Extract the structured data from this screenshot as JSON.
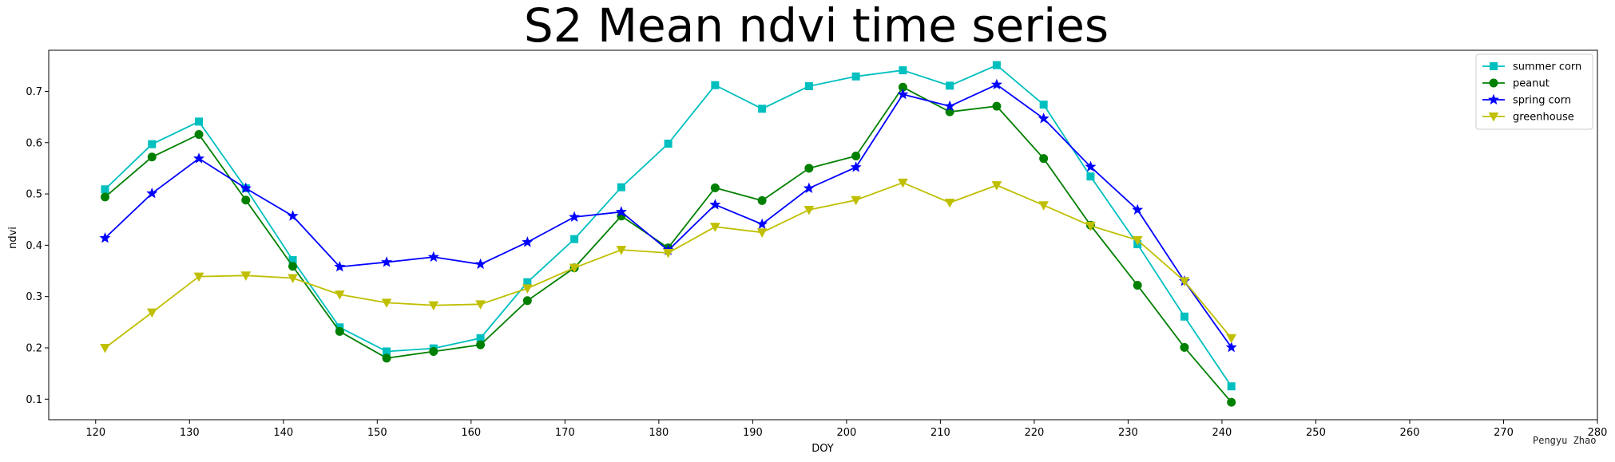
{
  "chart_data": {
    "type": "line",
    "title": "S2 Mean ndvi time series",
    "xlabel": "DOY",
    "ylabel": "ndvi",
    "xlim": [
      115,
      280
    ],
    "ylim": [
      0.06,
      0.78
    ],
    "xticks": [
      120,
      130,
      140,
      150,
      160,
      170,
      180,
      190,
      200,
      210,
      220,
      230,
      240,
      250,
      260,
      270,
      280
    ],
    "yticks": [
      0.1,
      0.2,
      0.3,
      0.4,
      0.5,
      0.6,
      0.7
    ],
    "grid": false,
    "legend_position": "top-right",
    "x": [
      121,
      126,
      131,
      136,
      141,
      146,
      151,
      156,
      161,
      166,
      171,
      176,
      181,
      186,
      191,
      196,
      201,
      206,
      211,
      216,
      221,
      226,
      231,
      236,
      241
    ],
    "series": [
      {
        "name": "summer corn",
        "color": "#00bfbf",
        "marker": "square",
        "values": [
          0.509,
          0.597,
          0.641,
          0.511,
          0.371,
          0.24,
          0.193,
          0.199,
          0.219,
          0.328,
          0.412,
          0.513,
          0.598,
          0.712,
          0.666,
          0.71,
          0.729,
          0.741,
          0.711,
          0.751,
          0.674,
          0.534,
          0.402,
          0.261,
          0.125
        ]
      },
      {
        "name": "peanut",
        "color": "#008000",
        "marker": "circle",
        "values": [
          0.494,
          0.572,
          0.616,
          0.488,
          0.359,
          0.232,
          0.18,
          0.193,
          0.206,
          0.292,
          0.356,
          0.457,
          0.395,
          0.512,
          0.487,
          0.55,
          0.574,
          0.708,
          0.66,
          0.671,
          0.569,
          0.439,
          0.322,
          0.201,
          0.094
        ]
      },
      {
        "name": "spring corn",
        "color": "#0000ff",
        "marker": "star",
        "values": [
          0.414,
          0.501,
          0.569,
          0.511,
          0.457,
          0.358,
          0.367,
          0.377,
          0.363,
          0.406,
          0.455,
          0.465,
          0.39,
          0.479,
          0.441,
          0.511,
          0.552,
          0.694,
          0.671,
          0.713,
          0.647,
          0.553,
          0.469,
          0.33,
          0.201
        ]
      },
      {
        "name": "greenhouse",
        "color": "#bfbf00",
        "marker": "triangle-down",
        "values": [
          0.2,
          0.269,
          0.339,
          0.341,
          0.336,
          0.304,
          0.288,
          0.283,
          0.285,
          0.316,
          0.356,
          0.391,
          0.385,
          0.436,
          0.425,
          0.469,
          0.488,
          0.522,
          0.483,
          0.517,
          0.478,
          0.438,
          0.41,
          0.33,
          0.219
        ]
      }
    ],
    "annotation": "Pengyu Zhao"
  }
}
